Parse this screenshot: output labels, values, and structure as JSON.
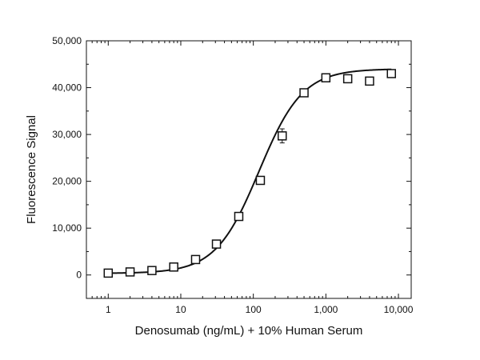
{
  "chart_data": {
    "type": "scatter",
    "xlabel": "Denosumab (ng/mL) + 10% Human Serum",
    "ylabel": "Fluorescence Signal",
    "xscale": "log",
    "xlim": [
      0.5,
      15000
    ],
    "ylim": [
      -5000,
      50000
    ],
    "grid": false,
    "legend": "none",
    "x_ticks": [
      {
        "value": 1,
        "label": "1"
      },
      {
        "value": 10,
        "label": "10"
      },
      {
        "value": 100,
        "label": "100"
      },
      {
        "value": 1000,
        "label": "1,000"
      },
      {
        "value": 10000,
        "label": "10,000"
      }
    ],
    "y_ticks": [
      {
        "value": 0,
        "label": "0"
      },
      {
        "value": 10000,
        "label": "10,000"
      },
      {
        "value": 20000,
        "label": "20,000"
      },
      {
        "value": 30000,
        "label": "30,000"
      },
      {
        "value": 40000,
        "label": "40,000"
      },
      {
        "value": 50000,
        "label": "50,000"
      }
    ],
    "series": [
      {
        "marker": "open-square",
        "x": [
          1,
          2,
          4,
          8,
          16,
          31,
          63,
          125,
          250,
          500,
          1000,
          2000,
          4000,
          8000
        ],
        "y": [
          400,
          650,
          950,
          1700,
          3300,
          6600,
          12500,
          20200,
          29700,
          38900,
          42100,
          41900,
          41400,
          43000
        ],
        "y_err": [
          0,
          0,
          0,
          0,
          0,
          0,
          0,
          0,
          1500,
          0,
          0,
          0,
          0,
          0
        ]
      }
    ],
    "fit_curve": {
      "model": "4PL",
      "bottom": 350,
      "top": 44000,
      "ec50": 120,
      "hill": 1.45
    },
    "colors": {
      "marker": "#111111",
      "curve": "#111111",
      "axis": "#111111"
    }
  }
}
